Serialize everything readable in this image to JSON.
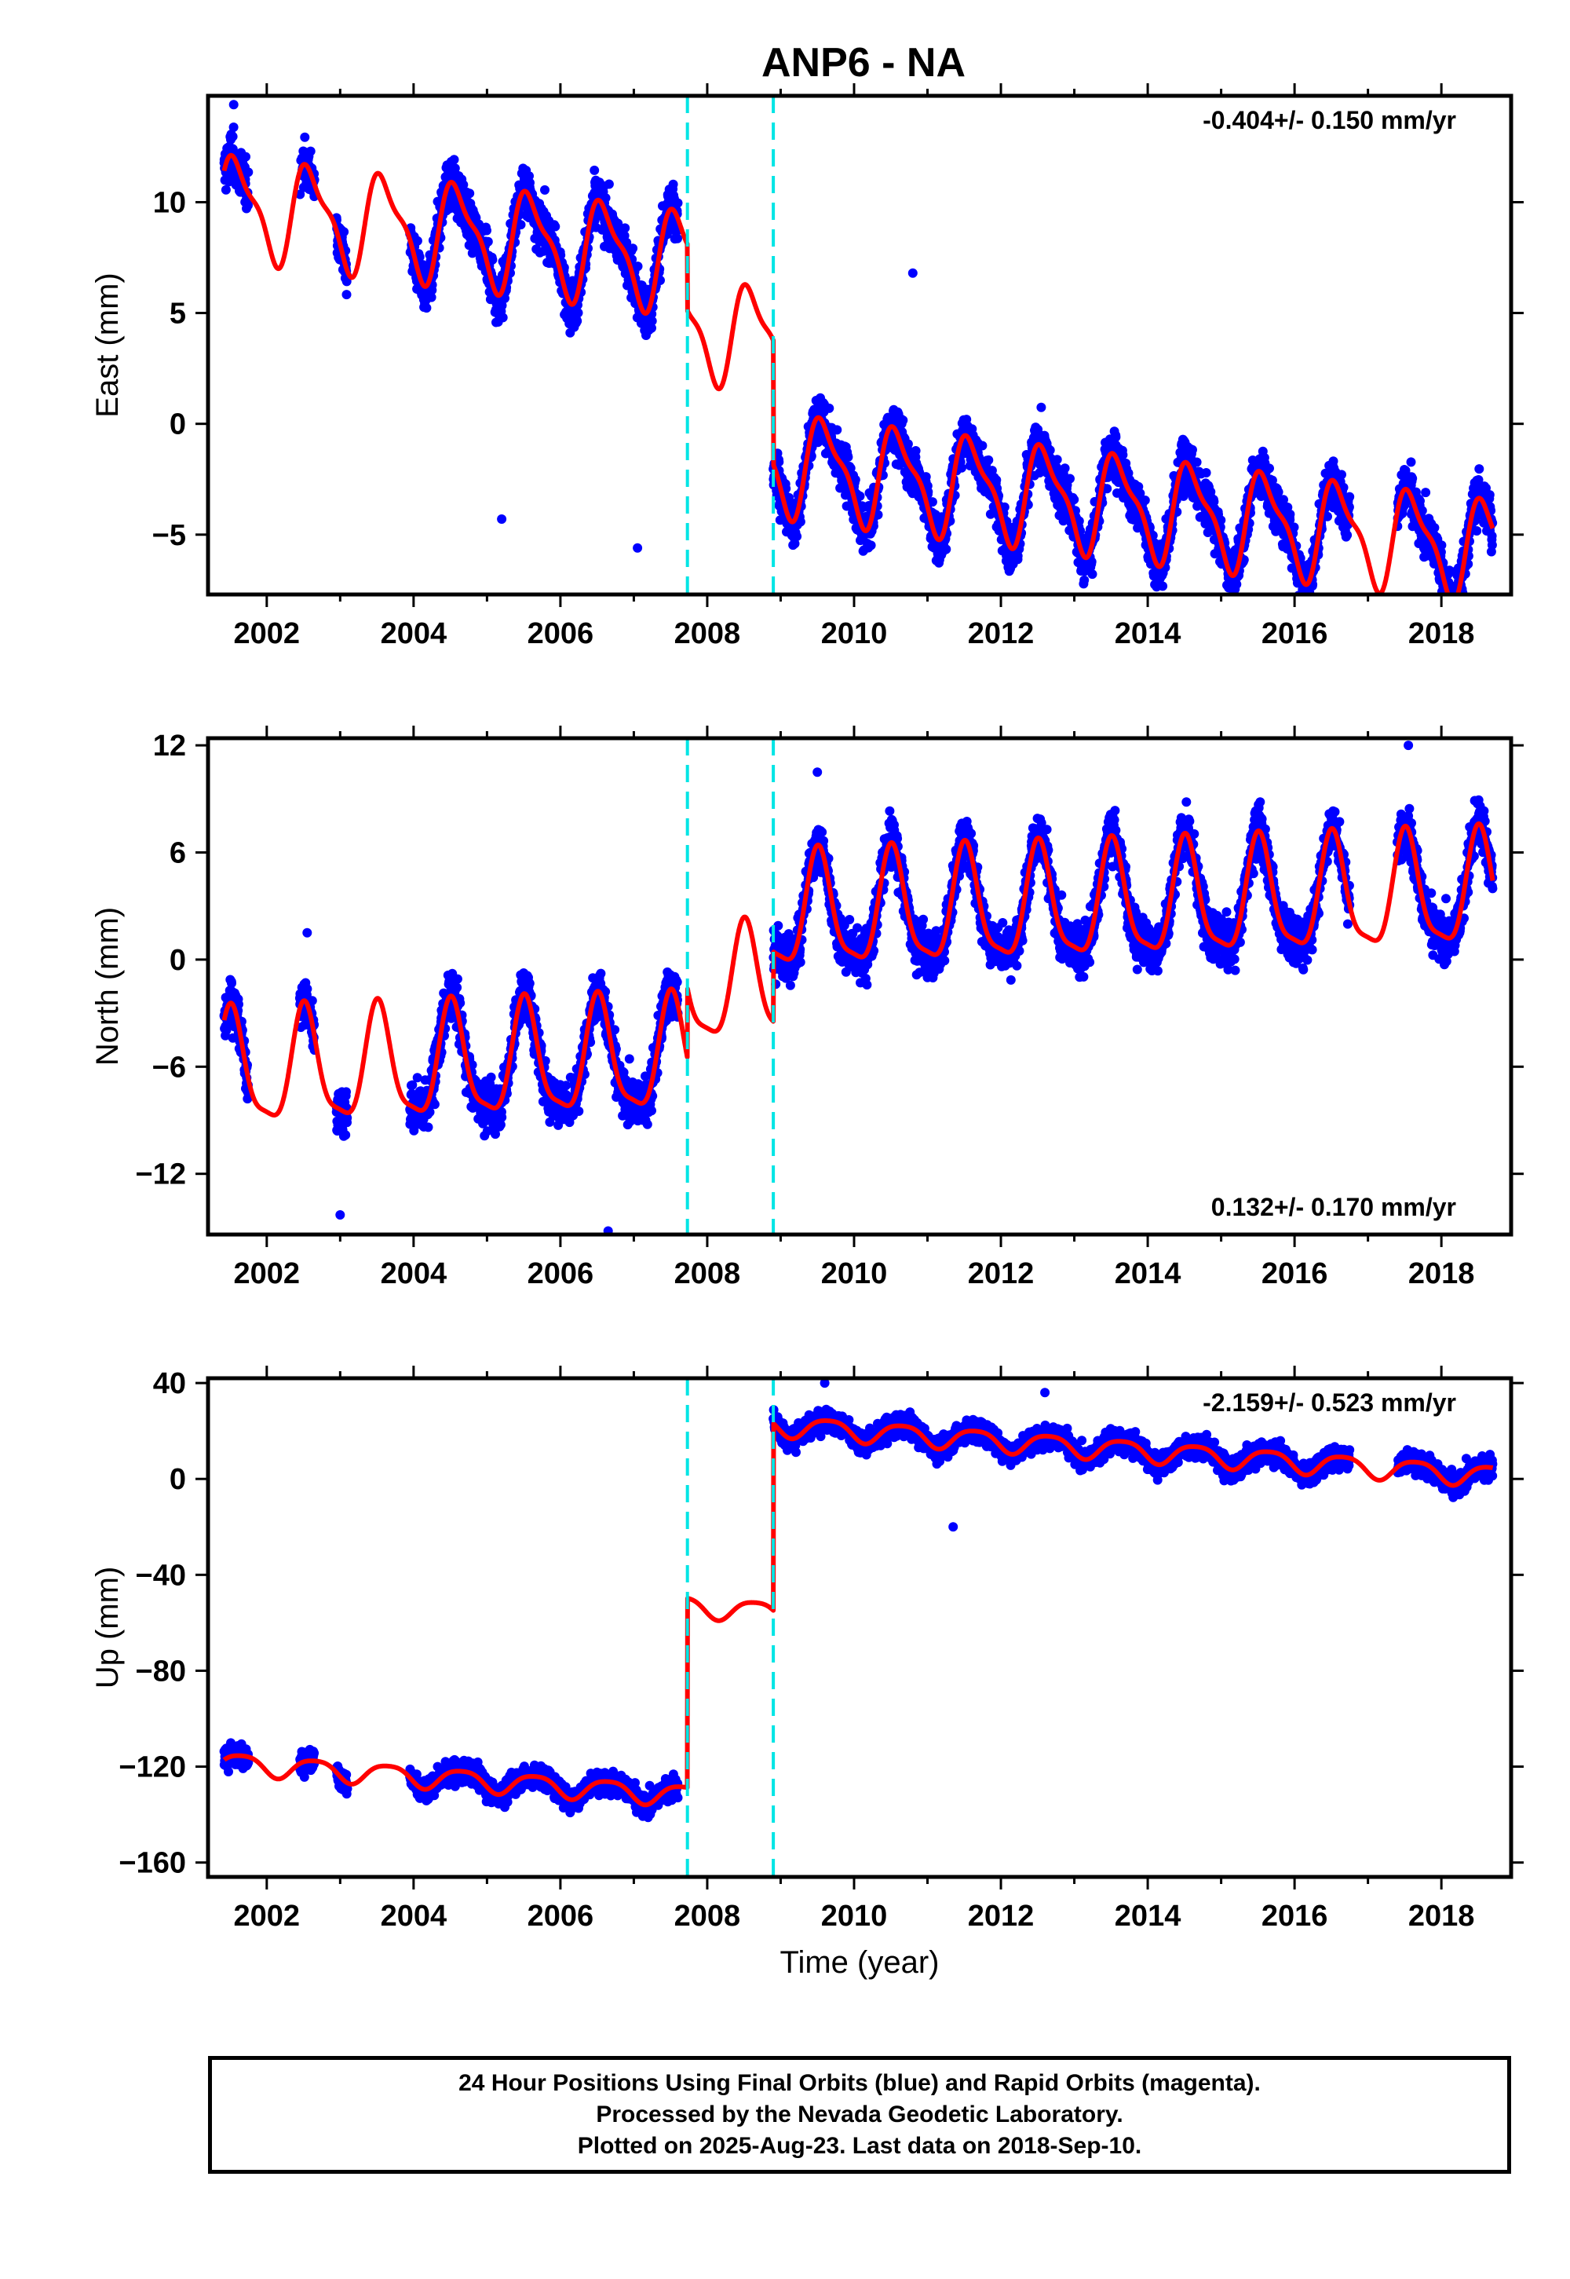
{
  "title": "ANP6 - NA",
  "colors": {
    "final_orbits": "#0000ff",
    "model_fit": "#ff0000",
    "breaks": "#00e5e5",
    "frame": "#000000"
  },
  "time_axis": {
    "xlim": [
      2001.2,
      2018.95
    ],
    "ticks": [
      2002,
      2004,
      2006,
      2008,
      2010,
      2012,
      2014,
      2016,
      2018
    ],
    "tick_labels": [
      "2002",
      "2004",
      "2006",
      "2008",
      "2010",
      "2012",
      "2014",
      "2016",
      "2018"
    ],
    "xlabel": "Time (year)"
  },
  "equipment_breaks": [
    2007.73,
    2008.9
  ],
  "footer": {
    "line1": "24 Hour Positions Using Final Orbits (blue) and Rapid Orbits (magenta).",
    "line2": "Processed by the Nevada Geodetic Laboratory.",
    "line3": "Plotted on 2025-Aug-23. Last data on 2018-Sep-10."
  },
  "chart_data": [
    {
      "type": "scatter",
      "ylabel": "East (mm)",
      "ylim": [
        -7.7,
        14.8
      ],
      "yticks": [
        -5,
        0,
        5,
        10
      ],
      "ytick_labels": [
        "−5",
        "0",
        "5",
        "10"
      ],
      "rate": "-0.404+/- 0.150 mm/yr",
      "rate_position": "top-right",
      "model": {
        "rate_mm_per_yr": -0.404,
        "segment_offsets": [
          6.4,
          3.4,
          -2.2
        ],
        "annual_amplitude": 2.1,
        "annual_peak": 0.6,
        "semiannual_amplitude": 0.7,
        "semiannual_peak": 0.45
      },
      "series": [
        {
          "kind": "observations",
          "coverage": [
            [
              2001.42,
              2001.75
            ],
            [
              2002.45,
              2002.65
            ],
            [
              2002.95,
              2003.1
            ],
            [
              2003.95,
              2007.6
            ],
            [
              2008.9,
              2016.75
            ],
            [
              2017.4,
              2018.7
            ]
          ],
          "noise_mm": 1.05,
          "outlier_mm": [
            [
              2001.55,
              14.4
            ],
            [
              2006.6,
              8.0
            ],
            [
              2010.8,
              6.8
            ],
            [
              2005.2,
              -4.3
            ],
            [
              2007.05,
              -5.6
            ]
          ]
        },
        {
          "kind": "model_fit"
        }
      ]
    },
    {
      "type": "scatter",
      "ylabel": "North (mm)",
      "ylim": [
        -15.4,
        12.4
      ],
      "yticks": [
        -12,
        -6,
        0,
        6,
        12
      ],
      "ytick_labels": [
        "−12",
        "−6",
        "0",
        "6",
        "12"
      ],
      "rate": "0.132+/- 0.170 mm/yr",
      "rate_position": "bottom-right",
      "model": {
        "rate_mm_per_yr": 0.132,
        "segment_offsets": [
          -5.2,
          -1.3,
          2.6
        ],
        "annual_amplitude": 3.1,
        "annual_peak": 0.52,
        "semiannual_amplitude": 0.8,
        "semiannual_peak": 0.5
      },
      "series": [
        {
          "kind": "observations",
          "coverage": [
            [
              2001.42,
              2001.75
            ],
            [
              2002.45,
              2002.65
            ],
            [
              2002.95,
              2003.1
            ],
            [
              2003.95,
              2007.6
            ],
            [
              2008.9,
              2016.75
            ],
            [
              2017.4,
              2018.7
            ]
          ],
          "noise_mm": 1.3,
          "outlier_mm": [
            [
              2002.55,
              1.5
            ],
            [
              2003.0,
              -14.3
            ],
            [
              2006.65,
              -15.2
            ],
            [
              2017.55,
              12.0
            ],
            [
              2009.5,
              10.5
            ]
          ]
        },
        {
          "kind": "model_fit"
        }
      ]
    },
    {
      "type": "scatter",
      "ylabel": "Up (mm)",
      "ylim": [
        -166,
        42
      ],
      "yticks": [
        -160,
        -120,
        -80,
        -40,
        0,
        40
      ],
      "ytick_labels": [
        "−160",
        "−120",
        "−80",
        "−40",
        "0",
        "40"
      ],
      "rate": "-2.159+/- 0.523 mm/yr",
      "rate_position": "top-right",
      "model": {
        "rate_mm_per_yr": -2.159,
        "segment_offsets": [
          -137,
          -58,
          20
        ],
        "annual_amplitude": 4.3,
        "annual_peak": 0.65,
        "semiannual_amplitude": 0.8,
        "semiannual_peak": 0.4
      },
      "series": [
        {
          "kind": "observations",
          "coverage": [
            [
              2001.42,
              2001.75
            ],
            [
              2002.45,
              2002.65
            ],
            [
              2002.95,
              2003.1
            ],
            [
              2003.95,
              2007.6
            ],
            [
              2008.9,
              2016.75
            ],
            [
              2017.4,
              2018.7
            ]
          ],
          "noise_mm": 4.5,
          "outlier_mm": [
            [
              2002.55,
              -114
            ],
            [
              2009.6,
              40
            ],
            [
              2011.35,
              -20
            ],
            [
              2012.6,
              36
            ]
          ]
        },
        {
          "kind": "model_fit"
        }
      ]
    }
  ]
}
